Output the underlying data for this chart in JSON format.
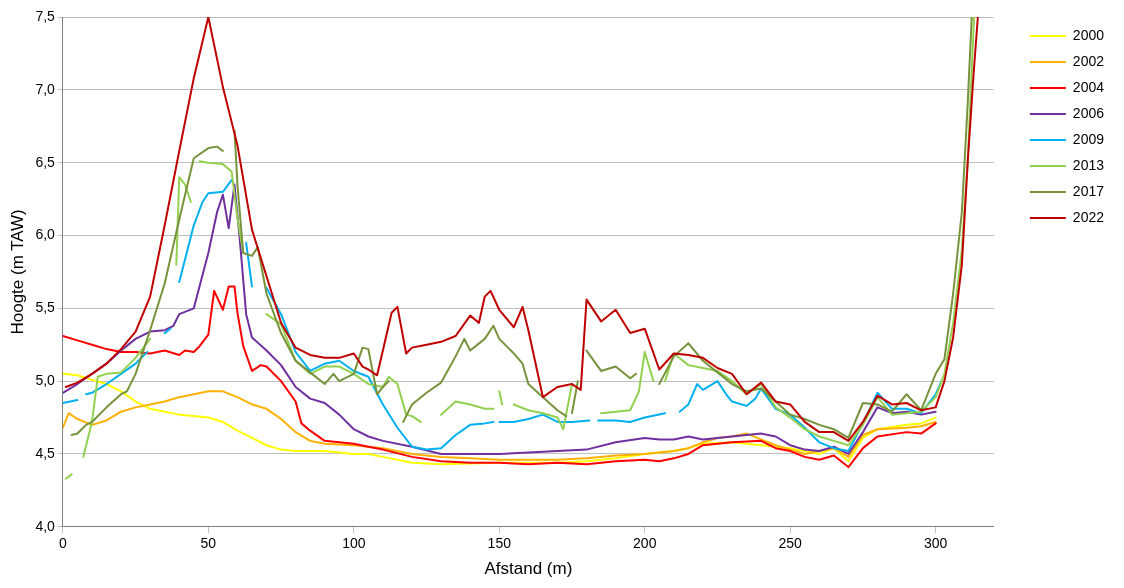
{
  "chart_data": {
    "type": "line",
    "xlabel": "Afstand (m)",
    "ylabel": "Hoogte (m TAW)",
    "xlim": [
      0,
      320
    ],
    "xticks": [
      0,
      50,
      100,
      150,
      200,
      250,
      300
    ],
    "ylim": [
      4.0,
      7.5
    ],
    "yticks": [
      {
        "value": 4.0,
        "label": "4,0"
      },
      {
        "value": 4.5,
        "label": "4,5"
      },
      {
        "value": 5.0,
        "label": "5,0"
      },
      {
        "value": 5.5,
        "label": "5,5"
      },
      {
        "value": 6.0,
        "label": "6,0"
      },
      {
        "value": 6.5,
        "label": "6,5"
      },
      {
        "value": 7.0,
        "label": "7,0"
      },
      {
        "value": 7.5,
        "label": "7,5"
      }
    ],
    "grid": "y",
    "legend": "top right",
    "marker": "none",
    "line_style": "solid",
    "series": [
      {
        "name": "2000",
        "color": "#ffff00",
        "x": [
          0,
          5,
          10,
          15,
          20,
          25,
          30,
          35,
          40,
          45,
          50,
          55,
          60,
          65,
          70,
          75,
          80,
          90,
          100,
          105,
          110,
          120,
          130,
          150,
          170,
          180,
          190,
          200,
          210,
          215,
          220,
          230,
          240,
          250,
          255,
          260,
          265,
          270,
          275,
          280,
          290,
          295,
          300
        ],
        "values": [
          5.05,
          5.04,
          5.01,
          4.98,
          4.93,
          4.86,
          4.81,
          4.79,
          4.77,
          4.76,
          4.75,
          4.72,
          4.66,
          4.61,
          4.56,
          4.53,
          4.52,
          4.52,
          4.5,
          4.5,
          4.48,
          4.44,
          4.43,
          4.44,
          4.44,
          4.45,
          4.47,
          4.5,
          4.52,
          4.54,
          4.57,
          4.58,
          4.56,
          4.54,
          4.52,
          4.5,
          4.54,
          4.45,
          4.61,
          4.67,
          4.7,
          4.71,
          4.75
        ]
      },
      {
        "name": "2002",
        "color": "#ffb000",
        "x": [
          0,
          2,
          5,
          10,
          15,
          20,
          25,
          30,
          35,
          40,
          45,
          50,
          55,
          60,
          65,
          70,
          75,
          80,
          85,
          90,
          100,
          105,
          110,
          120,
          130,
          140,
          150,
          160,
          170,
          180,
          190,
          200,
          210,
          215,
          220,
          225,
          230,
          235,
          240,
          245,
          250,
          255,
          260,
          265,
          270,
          275,
          280,
          290,
          295,
          300
        ],
        "values": [
          4.68,
          4.78,
          4.74,
          4.7,
          4.73,
          4.79,
          4.82,
          4.84,
          4.86,
          4.89,
          4.91,
          4.93,
          4.93,
          4.89,
          4.84,
          4.81,
          4.74,
          4.65,
          4.59,
          4.57,
          4.56,
          4.55,
          4.54,
          4.5,
          4.48,
          4.47,
          4.46,
          4.46,
          4.46,
          4.47,
          4.49,
          4.5,
          4.52,
          4.54,
          4.58,
          4.61,
          4.62,
          4.64,
          4.6,
          4.56,
          4.53,
          4.5,
          4.52,
          4.54,
          4.48,
          4.63,
          4.67,
          4.68,
          4.69,
          4.72
        ]
      },
      {
        "name": "2004",
        "color": "#ff0000",
        "x": [
          0,
          5,
          10,
          15,
          20,
          25,
          30,
          35,
          40,
          42,
          45,
          47,
          50,
          52,
          55,
          57,
          59,
          60,
          62,
          65,
          68,
          70,
          75,
          80,
          82,
          85,
          90,
          95,
          100,
          105,
          110,
          120,
          130,
          140,
          150,
          160,
          170,
          180,
          190,
          200,
          205,
          210,
          215,
          220,
          230,
          240,
          245,
          250,
          255,
          260,
          265,
          270,
          275,
          280,
          290,
          295,
          300
        ],
        "values": [
          5.31,
          5.28,
          5.25,
          5.22,
          5.2,
          5.2,
          5.19,
          5.21,
          5.18,
          5.21,
          5.2,
          5.24,
          5.32,
          5.62,
          5.49,
          5.65,
          5.65,
          5.47,
          5.24,
          5.07,
          5.11,
          5.1,
          5.0,
          4.86,
          4.71,
          4.66,
          4.59,
          4.58,
          4.57,
          4.55,
          4.53,
          4.48,
          4.45,
          4.44,
          4.44,
          4.43,
          4.44,
          4.43,
          4.45,
          4.46,
          4.45,
          4.47,
          4.5,
          4.56,
          4.58,
          4.59,
          4.54,
          4.52,
          4.48,
          4.46,
          4.49,
          4.41,
          4.54,
          4.62,
          4.65,
          4.64,
          4.71
        ]
      },
      {
        "name": "2006",
        "color": "#7030a0",
        "x": [
          0,
          5,
          10,
          15,
          20,
          25,
          30,
          35,
          38,
          40,
          45,
          50,
          53,
          55,
          57,
          59,
          61,
          63,
          65,
          70,
          75,
          80,
          85,
          90,
          95,
          100,
          105,
          110,
          120,
          130,
          140,
          150,
          160,
          170,
          180,
          190,
          200,
          205,
          210,
          215,
          220,
          230,
          240,
          245,
          250,
          255,
          260,
          265,
          270,
          275,
          280,
          285,
          290,
          295,
          300
        ],
        "values": [
          4.92,
          4.98,
          5.05,
          5.12,
          5.21,
          5.29,
          5.34,
          5.35,
          5.38,
          5.46,
          5.5,
          5.88,
          6.16,
          6.28,
          6.05,
          6.35,
          5.93,
          5.46,
          5.3,
          5.21,
          5.11,
          4.96,
          4.88,
          4.85,
          4.77,
          4.67,
          4.62,
          4.59,
          4.55,
          4.5,
          4.5,
          4.5,
          4.51,
          4.52,
          4.53,
          4.58,
          4.61,
          4.6,
          4.6,
          4.62,
          4.6,
          4.62,
          4.64,
          4.62,
          4.56,
          4.53,
          4.52,
          4.55,
          4.5,
          4.65,
          4.82,
          4.78,
          4.79,
          4.77,
          4.79
        ]
      },
      {
        "name": "2009",
        "color": "#00b0f0",
        "x": [
          0,
          5,
          6,
          8,
          10,
          15,
          20,
          25,
          29,
          31,
          35,
          37,
          38,
          40,
          45,
          48,
          50,
          55,
          58,
          61,
          63,
          65,
          67,
          70,
          75,
          80,
          85,
          90,
          95,
          100,
          105,
          110,
          115,
          120,
          125,
          130,
          135,
          140,
          145,
          148,
          149,
          150,
          155,
          160,
          165,
          170,
          175,
          181,
          182,
          184,
          190,
          195,
          200,
          207,
          209,
          212,
          215,
          218,
          220,
          225,
          228,
          230,
          235,
          238,
          240,
          245,
          250,
          255,
          260,
          265,
          270,
          275,
          280,
          285,
          290,
          295,
          300,
          302
        ],
        "values": [
          4.85,
          4.87,
          null,
          4.91,
          4.92,
          4.98,
          5.05,
          5.12,
          5.2,
          null,
          5.33,
          5.36,
          null,
          5.68,
          6.07,
          6.23,
          6.29,
          6.3,
          6.38,
          null,
          5.95,
          5.65,
          null,
          5.64,
          5.46,
          5.2,
          5.07,
          5.12,
          5.14,
          5.07,
          5.03,
          4.84,
          4.68,
          4.55,
          4.53,
          4.54,
          4.63,
          4.7,
          4.71,
          4.72,
          null,
          4.72,
          4.72,
          4.74,
          4.77,
          4.72,
          4.72,
          4.73,
          null,
          4.73,
          4.73,
          4.72,
          4.75,
          4.78,
          null,
          4.79,
          4.84,
          4.98,
          4.94,
          5.0,
          4.91,
          4.86,
          4.83,
          4.88,
          4.95,
          4.81,
          4.77,
          4.68,
          4.58,
          4.54,
          4.52,
          4.71,
          4.92,
          4.81,
          4.81,
          4.78,
          4.91,
          5.0
        ]
      },
      {
        "name": "2013",
        "color": "#92d050",
        "x": [
          1,
          3,
          5,
          7,
          10,
          12,
          15,
          20,
          25,
          30,
          33,
          39,
          40,
          42,
          44,
          45,
          47,
          50,
          55,
          58,
          60,
          62,
          65,
          70,
          75,
          80,
          85,
          90,
          95,
          100,
          105,
          110,
          112,
          115,
          118,
          120,
          123,
          126,
          130,
          135,
          140,
          145,
          148,
          149,
          150,
          151,
          153,
          155,
          160,
          165,
          170,
          172,
          175,
          178,
          185,
          190,
          195,
          198,
          200,
          203,
          205,
          207,
          210,
          215,
          220,
          225,
          230,
          235,
          240,
          245,
          250,
          255,
          260,
          265,
          270,
          275,
          280,
          285,
          290,
          295,
          300,
          303,
          306,
          309,
          311,
          313.2
        ],
        "values": [
          4.33,
          4.36,
          null,
          4.48,
          4.72,
          5.03,
          5.05,
          5.06,
          5.16,
          5.29,
          null,
          5.8,
          6.4,
          6.35,
          6.23,
          null,
          6.51,
          6.5,
          6.49,
          6.44,
          6.12,
          5.88,
          null,
          5.46,
          5.39,
          5.14,
          5.05,
          5.1,
          5.1,
          5.05,
          4.98,
          4.96,
          5.03,
          4.98,
          4.77,
          4.76,
          4.72,
          null,
          4.77,
          4.86,
          4.84,
          4.81,
          4.81,
          null,
          4.93,
          4.84,
          null,
          4.84,
          4.8,
          4.78,
          4.75,
          4.67,
          4.98,
          null,
          4.78,
          4.79,
          4.8,
          4.93,
          5.2,
          5.0,
          null,
          5.0,
          5.19,
          5.11,
          5.09,
          5.07,
          5.0,
          4.91,
          4.98,
          4.82,
          4.75,
          4.67,
          4.62,
          4.59,
          4.56,
          4.7,
          4.89,
          4.77,
          4.78,
          4.79,
          4.89,
          5.05,
          5.4,
          5.9,
          6.5,
          7.5
        ]
      },
      {
        "name": "2017",
        "color": "#77933c",
        "x": [
          3,
          5,
          8,
          10,
          15,
          20,
          22,
          25,
          30,
          35,
          40,
          45,
          50,
          53,
          55,
          57,
          59,
          60,
          62,
          65,
          67,
          70,
          75,
          80,
          85,
          90,
          93,
          95,
          100,
          103,
          105,
          108,
          110,
          112,
          114,
          117,
          120,
          125,
          130,
          135,
          138,
          140,
          145,
          148,
          150,
          155,
          158,
          160,
          165,
          170,
          173,
          174,
          175,
          177,
          178,
          180,
          185,
          190,
          195,
          197,
          200,
          205,
          210,
          215,
          220,
          225,
          230,
          235,
          240,
          245,
          250,
          255,
          260,
          265,
          270,
          275,
          280,
          285,
          290,
          295,
          300,
          303,
          306,
          309,
          311,
          312.4
        ],
        "values": [
          4.63,
          4.64,
          4.7,
          4.72,
          4.82,
          4.91,
          4.93,
          5.05,
          5.35,
          5.67,
          6.11,
          6.53,
          6.6,
          6.61,
          6.58,
          null,
          6.72,
          6.35,
          5.88,
          5.86,
          5.92,
          5.6,
          5.33,
          5.14,
          5.06,
          4.98,
          5.05,
          5.0,
          5.05,
          5.23,
          5.22,
          4.91,
          4.96,
          5.0,
          null,
          4.72,
          4.84,
          4.92,
          4.99,
          5.17,
          5.29,
          5.21,
          5.29,
          5.38,
          5.29,
          5.19,
          5.12,
          4.98,
          4.89,
          4.8,
          4.76,
          null,
          4.78,
          5.0,
          null,
          5.21,
          5.07,
          5.1,
          5.02,
          5.05,
          null,
          4.98,
          5.17,
          5.26,
          5.14,
          5.06,
          4.98,
          4.93,
          4.95,
          4.86,
          4.77,
          4.74,
          4.7,
          4.67,
          4.61,
          4.85,
          4.84,
          4.79,
          4.91,
          4.8,
          5.05,
          5.15,
          5.6,
          6.16,
          6.9,
          7.5
        ]
      },
      {
        "name": "2022",
        "color": "#c00000",
        "x": [
          1,
          5,
          10,
          15,
          20,
          25,
          30,
          35,
          40,
          45,
          50,
          55,
          58,
          60,
          65,
          70,
          75,
          80,
          85,
          90,
          95,
          100,
          103,
          105,
          108,
          110,
          113,
          115,
          118,
          120,
          125,
          130,
          135,
          140,
          143,
          145,
          147,
          150,
          155,
          158,
          160,
          165,
          170,
          175,
          178,
          180,
          185,
          190,
          195,
          200,
          205,
          210,
          215,
          220,
          225,
          230,
          235,
          240,
          245,
          250,
          255,
          260,
          265,
          270,
          275,
          280,
          285,
          290,
          295,
          300,
          303,
          306,
          309,
          311,
          313,
          314.5
        ],
        "values": [
          4.96,
          4.99,
          5.05,
          5.12,
          5.22,
          5.34,
          5.58,
          6.07,
          6.58,
          7.08,
          7.5,
          7.02,
          6.78,
          6.62,
          6.04,
          5.72,
          5.4,
          5.23,
          5.18,
          5.16,
          5.16,
          5.19,
          5.1,
          5.08,
          5.04,
          5.21,
          5.47,
          5.51,
          5.19,
          5.23,
          5.25,
          5.27,
          5.31,
          5.45,
          5.4,
          5.58,
          5.62,
          5.49,
          5.37,
          5.51,
          5.35,
          4.89,
          4.96,
          4.98,
          4.94,
          5.56,
          5.41,
          5.49,
          5.33,
          5.36,
          5.08,
          5.19,
          5.18,
          5.16,
          5.09,
          5.05,
          4.91,
          4.99,
          4.86,
          4.84,
          4.72,
          4.65,
          4.65,
          4.59,
          4.72,
          4.9,
          4.84,
          4.85,
          4.8,
          4.82,
          5.0,
          5.3,
          5.8,
          6.5,
          7.1,
          7.5
        ]
      }
    ]
  }
}
